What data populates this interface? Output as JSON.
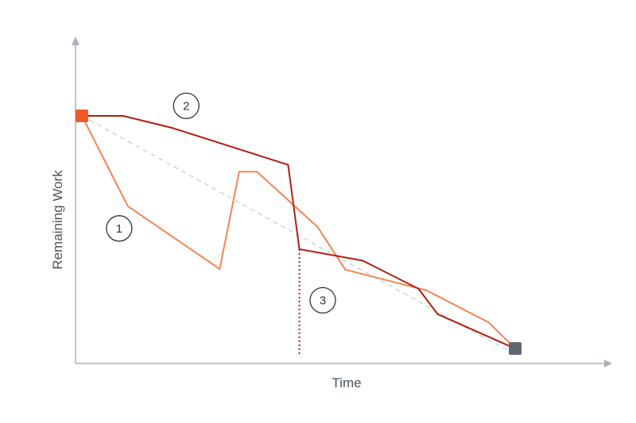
{
  "chart_data": {
    "type": "line",
    "title": "",
    "xlabel": "Time",
    "ylabel": "Remaining Work",
    "xlim": [
      0,
      100
    ],
    "ylim": [
      0,
      100
    ],
    "grid": false,
    "start_marker_color": "#f05a28",
    "end_marker_color": "#5f6670",
    "series": [
      {
        "key": "ideal",
        "color": "#cfd3d8",
        "style": "dashed",
        "x": [
          0,
          100
        ],
        "y": [
          100,
          0
        ]
      },
      {
        "key": "line1",
        "color": "#f58352",
        "style": "solid",
        "x": [
          0,
          10.6,
          31.8,
          36.3,
          40.4,
          54.4,
          60.8,
          79.6,
          93.9,
          100
        ],
        "y": [
          100,
          62.2,
          35.9,
          76.6,
          76.6,
          53.5,
          35.6,
          26.9,
          13.5,
          2.6
        ]
      },
      {
        "key": "line2",
        "color": "#b21e10",
        "style": "solid",
        "x": [
          0,
          9.5,
          21.0,
          47.6,
          50.2,
          64.8,
          77.7,
          82.1,
          100
        ],
        "y": [
          100,
          100,
          94.9,
          79.5,
          44.2,
          39.4,
          27.6,
          17.0,
          2.6
        ]
      },
      {
        "key": "cutoff",
        "color": "#b21e10",
        "style": "dotted",
        "x": [
          50.2,
          50.2
        ],
        "y": [
          44.2,
          0
        ]
      }
    ],
    "annotations": [
      {
        "text": "1",
        "x": 8.6,
        "y": 52.9
      },
      {
        "text": "2",
        "x": 24.1,
        "y": 104.2
      },
      {
        "text": "3",
        "x": 55.6,
        "y": 22.8
      }
    ]
  }
}
